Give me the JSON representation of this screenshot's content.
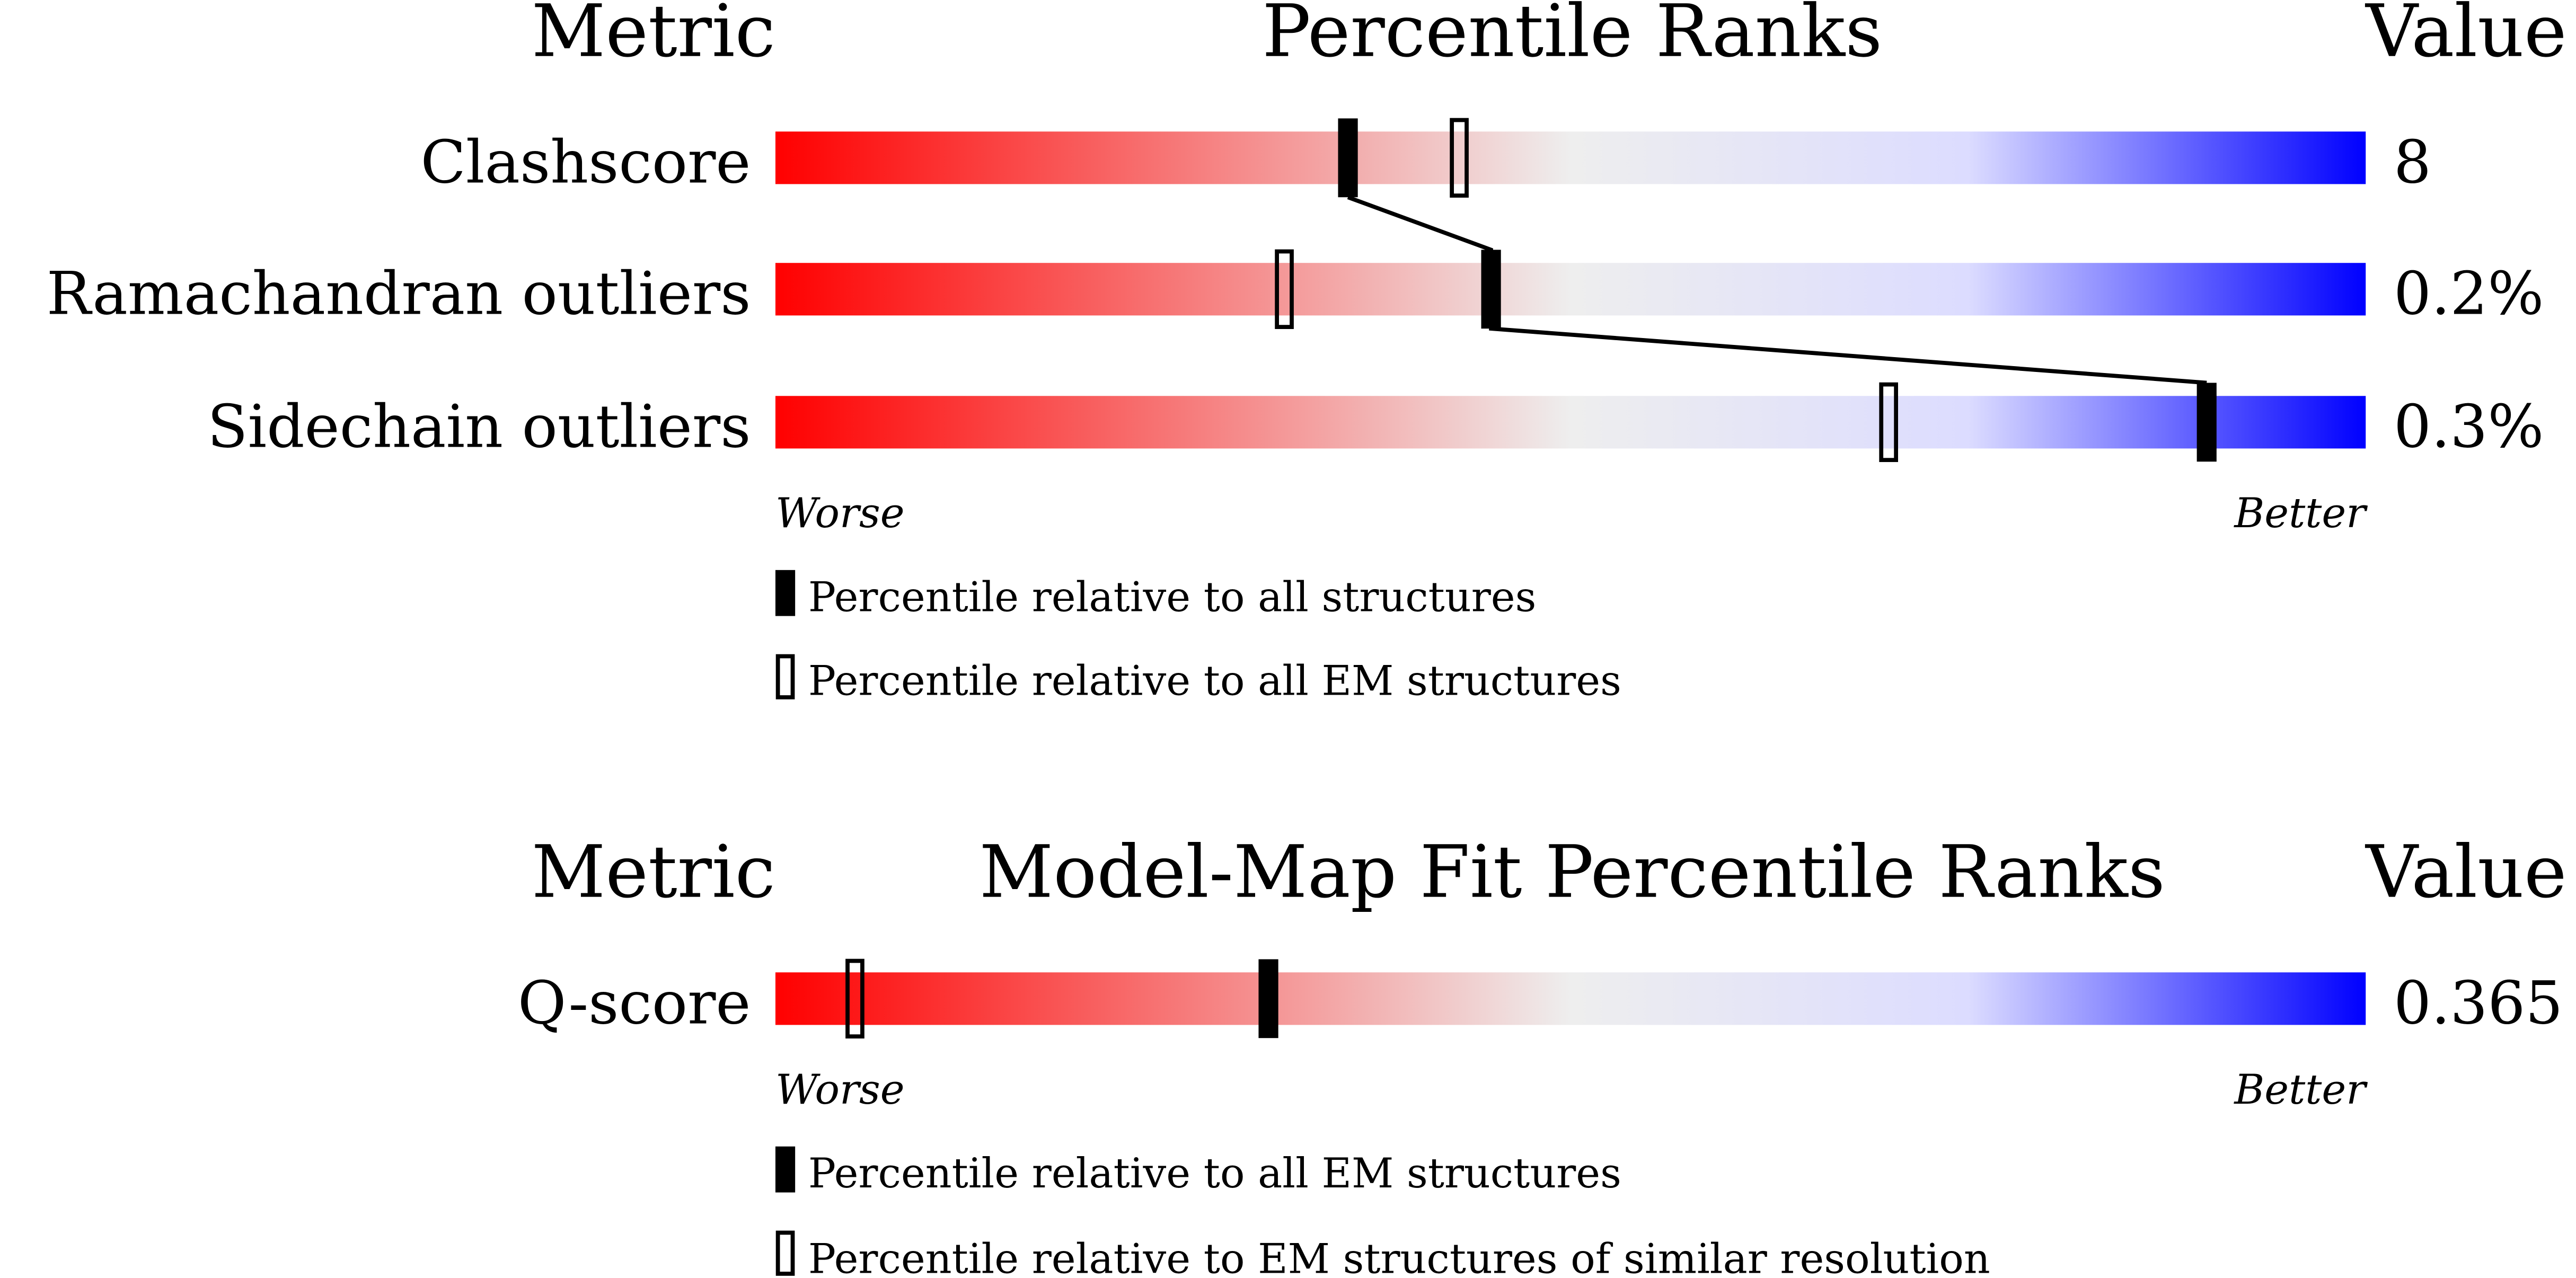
{
  "colors": {
    "worse": "#ff0000",
    "mid": "#eeeeee",
    "better": "#0000ff",
    "marker": "#000000"
  },
  "chart_data": [
    {
      "type": "percentile-ranks",
      "title": "Percentile Ranks",
      "metric_header": "Metric",
      "value_header": "Value",
      "worse_label": "Worse",
      "better_label": "Better",
      "metrics": [
        {
          "label": "Clashscore",
          "value": "8",
          "percentile_primary": 36,
          "percentile_secondary": 43
        },
        {
          "label": "Ramachandran outliers",
          "value": "0.2%",
          "percentile_primary": 45,
          "percentile_secondary": 32
        },
        {
          "label": "Sidechain outliers",
          "value": "0.3%",
          "percentile_primary": 90,
          "percentile_secondary": 70
        }
      ],
      "legend": [
        {
          "style": "filled",
          "label": "Percentile relative to all structures"
        },
        {
          "style": "hollow",
          "label": "Percentile relative to all EM structures"
        }
      ]
    },
    {
      "type": "percentile-ranks",
      "title": "Model-Map Fit Percentile Ranks",
      "metric_header": "Metric",
      "value_header": "Value",
      "worse_label": "Worse",
      "better_label": "Better",
      "metrics": [
        {
          "label": "Q-score",
          "value": "0.365",
          "percentile_primary": 31,
          "percentile_secondary": 5
        }
      ],
      "legend": [
        {
          "style": "filled",
          "label": "Percentile relative to all EM structures"
        },
        {
          "style": "hollow",
          "label": "Percentile relative to EM structures of similar resolution"
        }
      ]
    }
  ]
}
